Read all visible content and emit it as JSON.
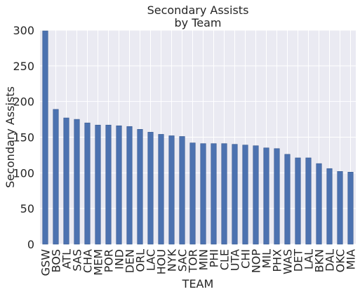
{
  "chart_data": {
    "type": "bar",
    "title": [
      "Secondary Assists",
      "by Team"
    ],
    "xlabel": "TEAM",
    "ylabel": "Secondary Assists",
    "ylim": [
      0,
      300
    ],
    "yticks": [
      0,
      50,
      100,
      150,
      200,
      250,
      300
    ],
    "grid": true,
    "legend": "none",
    "colors": {
      "bar": "#4c72b0",
      "bar_edge": "#3a5a8f",
      "plot_bg": "#eaeaf2",
      "grid": "#ffffff"
    },
    "categories": [
      "GSW",
      "BOS",
      "ATL",
      "SAS",
      "CHA",
      "MEM",
      "POR",
      "IND",
      "DEN",
      "ORL",
      "LAC",
      "HOU",
      "NYK",
      "SAC",
      "TOR",
      "MIN",
      "PHI",
      "CLE",
      "UTA",
      "CHI",
      "NOP",
      "MIL",
      "PHX",
      "WAS",
      "DET",
      "LAL",
      "BKN",
      "DAL",
      "OKC",
      "MIA"
    ],
    "values": [
      299,
      189,
      177,
      175,
      170,
      167,
      167,
      166,
      165,
      161,
      157,
      154,
      152,
      151,
      142,
      141,
      141,
      141,
      140,
      139,
      138,
      135,
      134,
      126,
      121,
      121,
      113,
      106,
      102,
      101
    ]
  }
}
